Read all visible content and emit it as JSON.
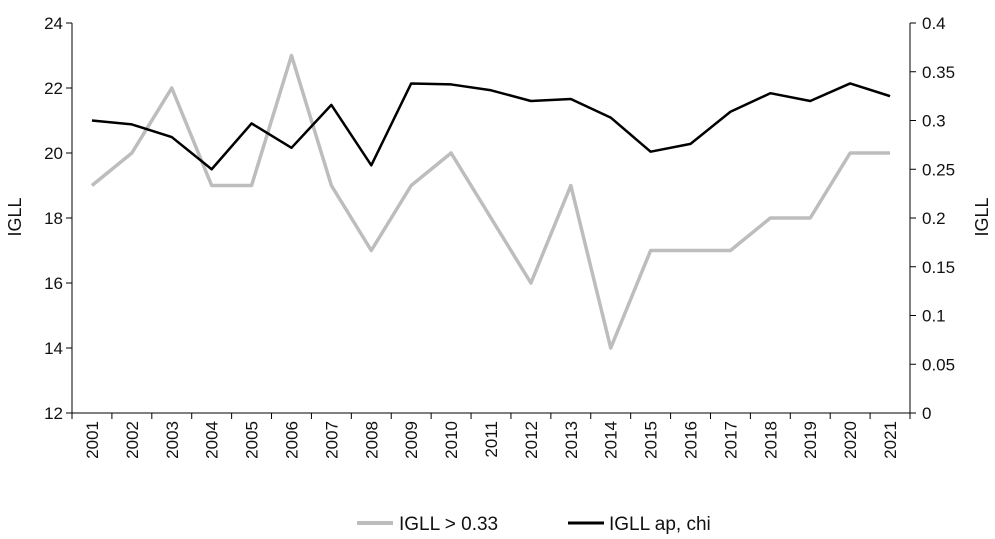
{
  "chart_data": {
    "type": "line",
    "categories": [
      "2001",
      "2002",
      "2003",
      "2004",
      "2005",
      "2006",
      "2007",
      "2008",
      "2009",
      "2010",
      "2011",
      "2012",
      "2013",
      "2014",
      "2015",
      "2016",
      "2017",
      "2018",
      "2019",
      "2020",
      "2021"
    ],
    "series": [
      {
        "name": "IGLL > 0.33",
        "axis": "left",
        "color": "#bdbdbd",
        "values": [
          19,
          20,
          22,
          19,
          19,
          23,
          19,
          17,
          19,
          20,
          18,
          16,
          19,
          14,
          17,
          17,
          17,
          18,
          18,
          20,
          20
        ]
      },
      {
        "name": "IGLL ap, chi",
        "axis": "right",
        "color": "#000000",
        "values": [
          0.3,
          0.296,
          0.283,
          0.25,
          0.297,
          0.272,
          0.316,
          0.254,
          0.338,
          0.337,
          0.331,
          0.32,
          0.322,
          0.303,
          0.268,
          0.276,
          0.309,
          0.328,
          0.32,
          0.338,
          0.325
        ]
      }
    ],
    "ylabel": "IGLL",
    "y2label": "IGLL",
    "ylim": [
      12,
      24
    ],
    "y2lim": [
      0,
      0.4
    ],
    "yticks": [
      "12",
      "14",
      "16",
      "18",
      "20",
      "22",
      "24"
    ],
    "y2ticks": [
      "0",
      "0.05",
      "0.1",
      "0.15",
      "0.2",
      "0.25",
      "0.3",
      "0.35",
      "0.4"
    ],
    "grid": false,
    "legend_position": "bottom-center"
  }
}
